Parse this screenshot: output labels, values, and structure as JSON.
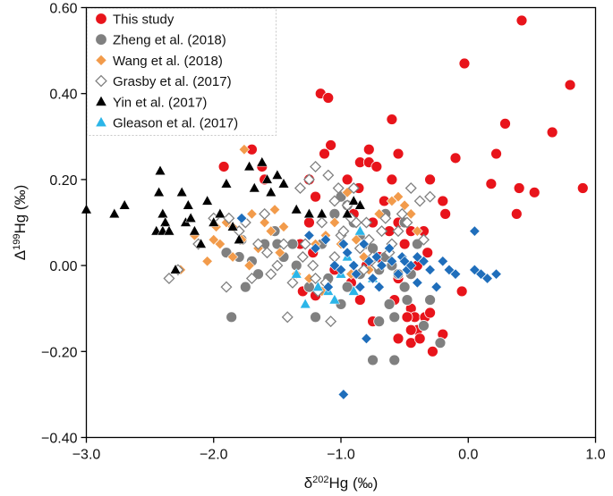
{
  "chart_data": {
    "type": "scatter",
    "title": "",
    "xlabel": {
      "pre": "δ",
      "sup": "202",
      "post": "Hg (‰)"
    },
    "ylabel": {
      "pre": "Δ",
      "sup": "199",
      "post": "Hg (‰)"
    },
    "xlim": [
      -3.0,
      1.0
    ],
    "ylim": [
      -0.4,
      0.6
    ],
    "xticks": [
      -3.0,
      -2.0,
      -1.0,
      0.0,
      1.0
    ],
    "xtick_labels": [
      "−3.0",
      "−2.0",
      "−1.0",
      "0.0",
      "1.0"
    ],
    "yticks": [
      -0.4,
      -0.2,
      0.0,
      0.2,
      0.4,
      0.6
    ],
    "ytick_labels": [
      "−0.40",
      "−0.20",
      "0.00",
      "0.20",
      "0.40",
      "0.60"
    ],
    "grid": false,
    "legend_position": "top-left",
    "series": [
      {
        "name": "This study",
        "marker": "circle",
        "color": "#e8141b",
        "points": [
          [
            0.42,
            0.57
          ],
          [
            -0.03,
            0.47
          ],
          [
            0.8,
            0.42
          ],
          [
            -1.16,
            0.4
          ],
          [
            -1.1,
            0.39
          ],
          [
            0.66,
            0.31
          ],
          [
            -0.6,
            0.34
          ],
          [
            0.29,
            0.33
          ],
          [
            -1.08,
            0.28
          ],
          [
            -1.13,
            0.26
          ],
          [
            -1.7,
            0.27
          ],
          [
            -1.92,
            0.23
          ],
          [
            -0.85,
            0.24
          ],
          [
            -0.78,
            0.24
          ],
          [
            -0.72,
            0.23
          ],
          [
            -0.78,
            0.27
          ],
          [
            -0.55,
            0.26
          ],
          [
            -0.1,
            0.25
          ],
          [
            0.22,
            0.26
          ],
          [
            0.18,
            0.19
          ],
          [
            0.9,
            0.18
          ],
          [
            0.52,
            0.17
          ],
          [
            0.4,
            0.18
          ],
          [
            0.38,
            0.12
          ],
          [
            -1.6,
            0.2
          ],
          [
            -1.62,
            0.23
          ],
          [
            -1.25,
            0.2
          ],
          [
            -1.2,
            0.16
          ],
          [
            -0.95,
            0.2
          ],
          [
            -0.86,
            0.18
          ],
          [
            -0.6,
            0.2
          ],
          [
            -0.3,
            0.2
          ],
          [
            -0.2,
            0.15
          ],
          [
            -0.18,
            0.12
          ],
          [
            -0.66,
            0.15
          ],
          [
            -1.25,
            0.1
          ],
          [
            -0.9,
            0.12
          ],
          [
            -0.75,
            0.1
          ],
          [
            -0.62,
            0.08
          ],
          [
            -0.55,
            0.1
          ],
          [
            -0.45,
            0.08
          ],
          [
            -0.35,
            0.08
          ],
          [
            -0.5,
            0.05
          ],
          [
            -1.32,
            0.05
          ],
          [
            -1.22,
            0.03
          ],
          [
            -1.05,
            -0.01
          ],
          [
            -0.9,
            -0.02
          ],
          [
            -0.8,
            0.0
          ],
          [
            -0.7,
            0.02
          ],
          [
            -0.4,
            0.0
          ],
          [
            -0.32,
            0.03
          ],
          [
            -0.55,
            -0.03
          ],
          [
            -0.5,
            -0.05
          ],
          [
            -0.58,
            -0.08
          ],
          [
            -0.45,
            -0.1
          ],
          [
            -0.42,
            -0.12
          ],
          [
            -0.4,
            -0.15
          ],
          [
            -0.34,
            -0.12
          ],
          [
            -0.3,
            -0.11
          ],
          [
            -0.55,
            -0.17
          ],
          [
            -0.45,
            -0.18
          ],
          [
            -0.38,
            -0.17
          ],
          [
            -0.28,
            -0.2
          ],
          [
            -0.05,
            -0.06
          ],
          [
            -1.3,
            -0.06
          ],
          [
            -1.2,
            -0.07
          ],
          [
            -0.92,
            -0.04
          ],
          [
            -0.85,
            -0.08
          ],
          [
            -0.75,
            -0.13
          ],
          [
            -0.48,
            -0.12
          ],
          [
            -0.2,
            -0.16
          ],
          [
            -0.45,
            -0.15
          ]
        ]
      },
      {
        "name": "Zheng et al. (2018)",
        "marker": "circle",
        "color": "#808080",
        "points": [
          [
            -1.5,
            0.05
          ],
          [
            -1.52,
            0.08
          ],
          [
            -1.45,
            0.02
          ],
          [
            -1.38,
            0.05
          ],
          [
            -1.6,
            0.05
          ],
          [
            -1.78,
            0.06
          ],
          [
            -1.8,
            0.02
          ],
          [
            -1.7,
            0.01
          ],
          [
            -1.65,
            -0.02
          ],
          [
            -1.86,
            -0.12
          ],
          [
            -1.9,
            0.03
          ],
          [
            -1.75,
            -0.05
          ],
          [
            -1.15,
            0.05
          ],
          [
            -1.05,
            0.12
          ],
          [
            -1.0,
            0.16
          ],
          [
            -0.95,
            0.14
          ],
          [
            -0.9,
            0.1
          ],
          [
            -0.85,
            0.07
          ],
          [
            -0.8,
            0.05
          ],
          [
            -0.75,
            0.04
          ],
          [
            -0.7,
            -0.01
          ],
          [
            -0.65,
            0.02
          ],
          [
            -0.6,
            0.0
          ],
          [
            -0.55,
            -0.02
          ],
          [
            -0.5,
            -0.05
          ],
          [
            -0.48,
            -0.08
          ],
          [
            -0.62,
            -0.09
          ],
          [
            -0.58,
            -0.12
          ],
          [
            -0.7,
            -0.13
          ],
          [
            -0.75,
            -0.22
          ],
          [
            -0.58,
            -0.22
          ],
          [
            -1.2,
            -0.12
          ],
          [
            -1.0,
            -0.09
          ],
          [
            -0.35,
            -0.14
          ],
          [
            -0.22,
            -0.18
          ],
          [
            -0.3,
            -0.08
          ],
          [
            -0.45,
            -0.02
          ],
          [
            -0.85,
            -0.02
          ],
          [
            -0.95,
            -0.05
          ],
          [
            -1.1,
            -0.03
          ],
          [
            -1.25,
            -0.05
          ],
          [
            -1.35,
            0.0
          ],
          [
            -0.4,
            0.05
          ],
          [
            -0.5,
            0.1
          ],
          [
            -0.65,
            0.12
          ]
        ]
      },
      {
        "name": "Wang et al. (2018)",
        "marker": "diamond",
        "color": "#f29b4b",
        "points": [
          [
            -2.26,
            -0.01
          ],
          [
            -2.05,
            0.01
          ],
          [
            -1.95,
            0.05
          ],
          [
            -1.85,
            0.02
          ],
          [
            -1.72,
            0.0
          ],
          [
            -1.9,
            0.1
          ],
          [
            -1.98,
            0.09
          ],
          [
            -2.15,
            0.07
          ],
          [
            -1.85,
            0.09
          ],
          [
            -1.76,
            0.27
          ],
          [
            -1.7,
            0.12
          ],
          [
            -1.6,
            0.1
          ],
          [
            -1.55,
            0.08
          ],
          [
            -1.48,
            0.03
          ],
          [
            -1.45,
            0.09
          ],
          [
            -1.52,
            0.13
          ],
          [
            -1.78,
            0.06
          ],
          [
            -1.3,
            0.02
          ],
          [
            -1.25,
            -0.03
          ],
          [
            -1.2,
            0.05
          ],
          [
            -1.12,
            0.07
          ],
          [
            -1.05,
            0.1
          ],
          [
            -1.0,
            0.05
          ],
          [
            -0.92,
            -0.02
          ],
          [
            -0.88,
            0.06
          ],
          [
            -0.82,
            0.02
          ],
          [
            -0.78,
            -0.01
          ],
          [
            -0.7,
            0.12
          ],
          [
            -0.6,
            0.15
          ],
          [
            -0.55,
            0.16
          ],
          [
            -0.5,
            0.14
          ],
          [
            -0.45,
            0.12
          ],
          [
            -0.4,
            0.08
          ],
          [
            -0.95,
            0.17
          ],
          [
            -1.15,
            -0.06
          ],
          [
            -1.35,
            -0.02
          ],
          [
            -1.65,
            0.04
          ],
          [
            -2.0,
            0.06
          ]
        ]
      },
      {
        "name": "Grasby et al. (2017)",
        "marker": "open-diamond",
        "color": "#808080",
        "points": [
          [
            -2.35,
            -0.03
          ],
          [
            -2.28,
            -0.01
          ],
          [
            -2.12,
            0.05
          ],
          [
            -2.0,
            0.11
          ],
          [
            -1.88,
            0.11
          ],
          [
            -1.8,
            0.08
          ],
          [
            -1.75,
            0.1
          ],
          [
            -1.65,
            0.05
          ],
          [
            -1.58,
            0.03
          ],
          [
            -1.55,
            -0.02
          ],
          [
            -1.5,
            0.0
          ],
          [
            -1.45,
            0.05
          ],
          [
            -1.42,
            -0.12
          ],
          [
            -1.38,
            -0.04
          ],
          [
            -1.3,
            0.02
          ],
          [
            -1.28,
            0.05
          ],
          [
            -1.22,
            0.0
          ],
          [
            -1.2,
            -0.03
          ],
          [
            -1.18,
            -0.06
          ],
          [
            -1.12,
            -0.04
          ],
          [
            -1.08,
            -0.13
          ],
          [
            -1.05,
            0.02
          ],
          [
            -1.0,
            0.07
          ],
          [
            -0.98,
            0.08
          ],
          [
            -0.95,
            0.14
          ],
          [
            -0.92,
            0.11
          ],
          [
            -0.88,
            0.1
          ],
          [
            -0.85,
            0.04
          ],
          [
            -0.82,
            -0.01
          ],
          [
            -0.78,
            0.06
          ],
          [
            -0.75,
            0.02
          ],
          [
            -0.72,
            0.0
          ],
          [
            -0.68,
            0.08
          ],
          [
            -0.65,
            0.11
          ],
          [
            -0.62,
            0.03
          ],
          [
            -0.6,
            0.05
          ],
          [
            -0.55,
            0.08
          ],
          [
            -0.52,
            0.12
          ],
          [
            -0.48,
            0.1
          ],
          [
            -0.45,
            0.18
          ],
          [
            -0.38,
            0.15
          ],
          [
            -0.3,
            0.16
          ],
          [
            -0.35,
            0.06
          ],
          [
            -1.25,
            0.2
          ],
          [
            -1.2,
            0.23
          ],
          [
            -1.1,
            0.21
          ],
          [
            -1.05,
            0.15
          ],
          [
            -1.02,
            0.18
          ],
          [
            -1.32,
            0.18
          ],
          [
            -1.6,
            0.12
          ],
          [
            -1.7,
            -0.03
          ],
          [
            -1.9,
            -0.05
          ],
          [
            -1.15,
            0.1
          ],
          [
            -0.9,
            0.18
          ],
          [
            -0.8,
            0.1
          ]
        ]
      },
      {
        "name": "Yin et al. (2017)",
        "marker": "triangle",
        "color": "#000000",
        "points": [
          [
            -3.0,
            0.13
          ],
          [
            -2.78,
            0.12
          ],
          [
            -2.7,
            0.14
          ],
          [
            -2.45,
            0.08
          ],
          [
            -2.42,
            0.22
          ],
          [
            -2.43,
            0.17
          ],
          [
            -2.4,
            0.12
          ],
          [
            -2.38,
            0.1
          ],
          [
            -2.4,
            0.08
          ],
          [
            -2.35,
            0.08
          ],
          [
            -2.3,
            -0.01
          ],
          [
            -2.25,
            0.17
          ],
          [
            -2.22,
            0.1
          ],
          [
            -2.2,
            0.14
          ],
          [
            -2.18,
            0.11
          ],
          [
            -2.15,
            0.08
          ],
          [
            -2.1,
            0.05
          ],
          [
            -2.05,
            0.15
          ],
          [
            -2.0,
            0.1
          ],
          [
            -1.95,
            0.12
          ],
          [
            -1.9,
            0.19
          ],
          [
            -1.85,
            0.09
          ],
          [
            -1.8,
            0.06
          ],
          [
            -1.72,
            0.23
          ],
          [
            -1.68,
            0.18
          ],
          [
            -1.62,
            0.24
          ],
          [
            -1.58,
            0.2
          ],
          [
            -1.55,
            0.17
          ],
          [
            -1.5,
            0.21
          ],
          [
            -1.45,
            0.19
          ],
          [
            -1.35,
            0.13
          ],
          [
            -1.25,
            0.12
          ],
          [
            -1.15,
            0.12
          ],
          [
            -0.95,
            0.12
          ],
          [
            -0.9,
            0.15
          ],
          [
            -0.85,
            0.14
          ]
        ]
      },
      {
        "name": "Gleason et al. (2017)",
        "marker": "triangle",
        "color": "#2bb5e8",
        "points": [
          [
            -1.28,
            -0.09
          ],
          [
            -1.18,
            -0.05
          ],
          [
            -1.1,
            -0.06
          ],
          [
            -1.05,
            -0.08
          ],
          [
            -1.0,
            -0.02
          ],
          [
            -0.95,
            0.02
          ],
          [
            -0.9,
            -0.06
          ],
          [
            -0.85,
            0.08
          ],
          [
            -0.75,
            -0.03
          ],
          [
            -1.35,
            -0.02
          ]
        ]
      },
      {
        "name": "(unlabeled series — blue diamonds)",
        "marker": "diamond",
        "color": "#1f6ebb",
        "in_legend": false,
        "points": [
          [
            -1.78,
            0.11
          ],
          [
            -1.25,
            0.07
          ],
          [
            -1.2,
            0.04
          ],
          [
            -1.12,
            0.06
          ],
          [
            -1.05,
            0.0
          ],
          [
            -1.0,
            -0.01
          ],
          [
            -0.98,
            0.05
          ],
          [
            -0.95,
            0.03
          ],
          [
            -0.9,
            0.0
          ],
          [
            -0.88,
            -0.02
          ],
          [
            -0.82,
            0.05
          ],
          [
            -0.78,
            0.01
          ],
          [
            -0.75,
            -0.03
          ],
          [
            -0.72,
            0.02
          ],
          [
            -0.68,
            0.0
          ],
          [
            -0.62,
            0.04
          ],
          [
            -0.6,
            0.01
          ],
          [
            -0.55,
            -0.02
          ],
          [
            -0.52,
            0.02
          ],
          [
            -0.5,
            0.01
          ],
          [
            -0.48,
            -0.01
          ],
          [
            -0.45,
            0.0
          ],
          [
            -0.4,
            0.02
          ],
          [
            -0.35,
            0.01
          ],
          [
            -0.3,
            -0.01
          ],
          [
            -0.2,
            0.01
          ],
          [
            -0.15,
            -0.01
          ],
          [
            -0.1,
            -0.02
          ],
          [
            0.05,
            0.08
          ],
          [
            0.05,
            -0.01
          ],
          [
            0.1,
            -0.02
          ],
          [
            0.15,
            -0.03
          ],
          [
            0.22,
            -0.02
          ],
          [
            -0.25,
            -0.05
          ],
          [
            -0.8,
            -0.17
          ],
          [
            -0.98,
            -0.3
          ],
          [
            -0.4,
            -0.04
          ],
          [
            -0.85,
            -0.05
          ],
          [
            -1.1,
            -0.05
          ],
          [
            -0.7,
            -0.05
          ]
        ]
      }
    ]
  }
}
